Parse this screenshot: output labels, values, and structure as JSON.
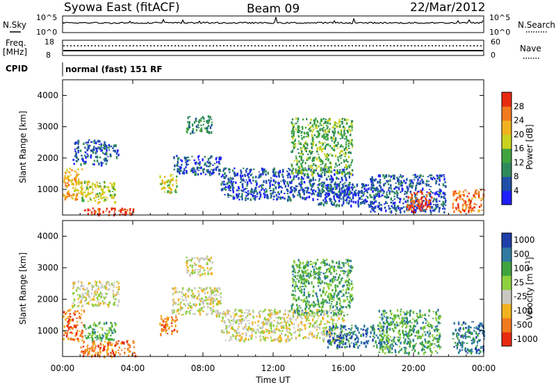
{
  "header": {
    "site": "Syowa East (fitACF)",
    "beam": "Beam 09",
    "date": "22/Mar/2012"
  },
  "strip_panels": {
    "nsky_label": "N.Sky",
    "nsky_ticks": [
      "10^5",
      "10^0"
    ],
    "nsearch_label": "N.Search",
    "nsearch_ticks": [
      "10^5",
      "10^0"
    ],
    "freq_label_1": "Freq.",
    "freq_label_2": "[MHz]",
    "freq_ticks": [
      "18",
      "8"
    ],
    "nave_label": "Nave",
    "nave_ticks": [
      "60",
      "0"
    ],
    "cpid_label": "CPID",
    "cpid_value": "normal (fast) 151 RF"
  },
  "colors": {
    "power": [
      "#1f1fff",
      "#1f4fa8",
      "#2f8a5a",
      "#3fa43f",
      "#c9d21f",
      "#f2b21f",
      "#f27a1f",
      "#e82a10"
    ],
    "velocity": [
      "#e82a10",
      "#f27a1f",
      "#f2b21f",
      "#c8c8c0",
      "#8fd03f",
      "#3fa43f",
      "#2f7aa0",
      "#1f3fa8"
    ],
    "grey": "#c8c8c0"
  },
  "chart_data": [
    {
      "type": "heatmap",
      "name": "power",
      "xlabel": "Time UT",
      "ylabel": "Slant Range [km]",
      "x_ticks": [
        "00:00",
        "04:00",
        "08:00",
        "12:00",
        "16:00",
        "20:00",
        "00:00"
      ],
      "y_ticks": [
        1000,
        2000,
        3000,
        4000
      ],
      "ylim": [
        180,
        4500
      ],
      "xlim_hours": [
        0,
        24
      ],
      "colorbar_label": "Power [dB]",
      "colorbar_ticks": [
        4,
        8,
        12,
        16,
        20,
        24,
        28
      ],
      "blobs": [
        {
          "t0": 0.0,
          "t1": 1.1,
          "r0": 700,
          "r1": 1700,
          "level": 5
        },
        {
          "t0": 1.2,
          "t1": 4.1,
          "r0": 200,
          "r1": 420,
          "level": 7
        },
        {
          "t0": 1.0,
          "t1": 3.0,
          "r0": 600,
          "r1": 1300,
          "level": 4
        },
        {
          "t0": 0.5,
          "t1": 2.5,
          "r0": 1800,
          "r1": 2600,
          "level": 1
        },
        {
          "t0": 2.3,
          "t1": 3.2,
          "r0": 2050,
          "r1": 2450,
          "level": 1
        },
        {
          "t0": 5.5,
          "t1": 6.5,
          "r0": 900,
          "r1": 1500,
          "level": 4
        },
        {
          "t0": 6.3,
          "t1": 9.0,
          "r0": 1500,
          "r1": 2100,
          "level": 1
        },
        {
          "t0": 7.0,
          "t1": 8.5,
          "r0": 2800,
          "r1": 3400,
          "level": 2
        },
        {
          "t0": 9.0,
          "t1": 16.5,
          "r0": 700,
          "r1": 1700,
          "level": 1
        },
        {
          "t0": 13.0,
          "t1": 16.5,
          "r0": 1500,
          "r1": 3300,
          "level": 3
        },
        {
          "t0": 14.5,
          "t1": 18.0,
          "r0": 500,
          "r1": 1200,
          "level": 1
        },
        {
          "t0": 17.5,
          "t1": 21.8,
          "r0": 300,
          "r1": 1500,
          "level": 1
        },
        {
          "t0": 19.6,
          "t1": 21.0,
          "r0": 300,
          "r1": 1000,
          "level": 7
        },
        {
          "t0": 22.2,
          "t1": 24.0,
          "r0": 300,
          "r1": 1000,
          "level": 6
        }
      ]
    },
    {
      "type": "heatmap",
      "name": "velocity",
      "xlabel": "Time UT",
      "ylabel": "Slant Range [km]",
      "x_ticks": [
        "00:00",
        "04:00",
        "08:00",
        "12:00",
        "16:00",
        "20:00",
        "00:00"
      ],
      "y_ticks": [
        1000,
        2000,
        3000,
        4000
      ],
      "ylim": [
        180,
        4500
      ],
      "xlim_hours": [
        0,
        24
      ],
      "colorbar_label": "Velocity [m s^-1]",
      "colorbar_ticks": [
        "1000",
        "500",
        "100",
        "25",
        "-25",
        "-100",
        "-500",
        "-1000"
      ],
      "blobs": [
        {
          "t0": 0.0,
          "t1": 1.2,
          "r0": 700,
          "r1": 1700,
          "level": 1
        },
        {
          "t0": 1.0,
          "t1": 4.2,
          "r0": 200,
          "r1": 700,
          "level": 1
        },
        {
          "t0": 1.2,
          "t1": 3.0,
          "r0": 700,
          "r1": 1300,
          "level": 5
        },
        {
          "t0": 0.5,
          "t1": 3.2,
          "r0": 1800,
          "r1": 2600,
          "level": 3
        },
        {
          "t0": 5.5,
          "t1": 6.5,
          "r0": 900,
          "r1": 1500,
          "level": 1
        },
        {
          "t0": 6.2,
          "t1": 9.0,
          "r0": 1500,
          "r1": 2400,
          "level": 3
        },
        {
          "t0": 7.0,
          "t1": 8.5,
          "r0": 2800,
          "r1": 3400,
          "level": 3
        },
        {
          "t0": 9.0,
          "t1": 16.0,
          "r0": 700,
          "r1": 1700,
          "level": 3
        },
        {
          "t0": 13.0,
          "t1": 16.5,
          "r0": 1500,
          "r1": 3300,
          "level": 5
        },
        {
          "t0": 15.0,
          "t1": 18.5,
          "r0": 500,
          "r1": 1200,
          "level": 6
        },
        {
          "t0": 18.0,
          "t1": 21.5,
          "r0": 300,
          "r1": 1700,
          "level": 5
        },
        {
          "t0": 22.2,
          "t1": 24.0,
          "r0": 300,
          "r1": 1300,
          "level": 6
        }
      ]
    }
  ]
}
